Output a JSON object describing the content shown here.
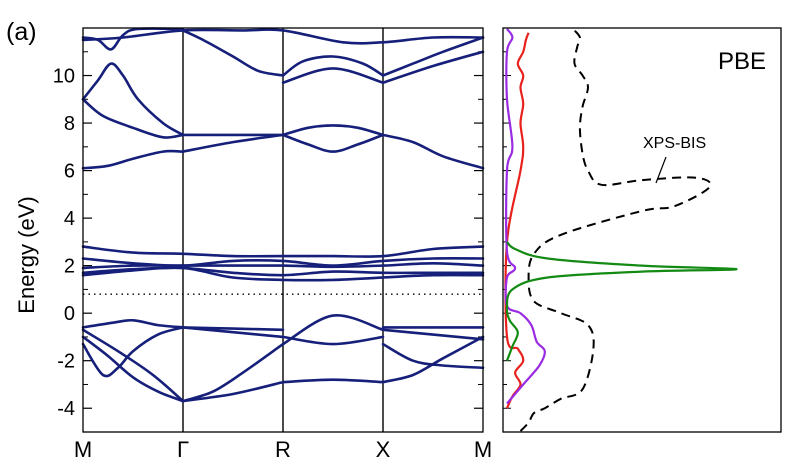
{
  "panel_label": "(a)",
  "colors": {
    "bands": "#16207a",
    "dos_red": "#e8211d",
    "dos_purple": "#9a2be2",
    "dos_green": "#138a13",
    "xps": "#000000"
  },
  "chart_data": [
    {
      "type": "line",
      "ylabel": "Energy (eV)",
      "ylim": [
        -5,
        12
      ],
      "yticks": [
        "-4",
        "-2",
        "0",
        "2",
        "4",
        "6",
        "8",
        "10"
      ],
      "k_labels": [
        "M",
        "Γ",
        "R",
        "X",
        "M"
      ],
      "fermi_level": 0.8,
      "bands": [
        {
          "x": [
            0,
            0.4,
            1,
            1.6,
            2,
            2.6,
            3,
            3.5,
            4
          ],
          "y": [
            11.5,
            11.6,
            11.9,
            11.9,
            11.9,
            11.4,
            11.4,
            11.6,
            11.6
          ]
        },
        {
          "x": [
            0,
            0.15,
            0.28,
            0.4,
            0.55,
            1
          ],
          "y": [
            11.6,
            11.5,
            11.1,
            11.7,
            12.0,
            12.0
          ]
        },
        {
          "x": [
            0,
            0.15,
            0.28,
            0.4,
            0.55,
            0.8,
            1
          ],
          "y": [
            9.0,
            9.8,
            10.5,
            10.0,
            9.0,
            8.0,
            7.5
          ]
        },
        {
          "x": [
            0,
            0.2,
            0.5,
            0.8,
            1
          ],
          "y": [
            9.0,
            8.3,
            7.8,
            7.4,
            7.5
          ]
        },
        {
          "x": [
            1,
            1.5,
            2
          ],
          "y": [
            7.5,
            7.5,
            7.5
          ]
        },
        {
          "x": [
            0,
            0.25,
            0.5,
            0.8,
            1
          ],
          "y": [
            6.1,
            6.2,
            6.5,
            6.8,
            6.8
          ]
        },
        {
          "x": [
            1,
            1.5,
            2
          ],
          "y": [
            6.8,
            7.2,
            7.5
          ]
        },
        {
          "x": [
            2,
            2.25,
            2.5,
            2.75,
            3
          ],
          "y": [
            7.5,
            7.8,
            7.9,
            7.8,
            7.5
          ]
        },
        {
          "x": [
            2,
            2.25,
            2.5,
            2.75,
            3
          ],
          "y": [
            7.5,
            7.1,
            6.8,
            7.1,
            7.5
          ]
        },
        {
          "x": [
            3,
            3.3,
            3.6,
            4
          ],
          "y": [
            7.5,
            7.2,
            6.6,
            6.1
          ]
        },
        {
          "x": [
            1,
            1.2,
            1.5,
            1.75,
            2
          ],
          "y": [
            11.9,
            11.5,
            10.8,
            10.2,
            10.0
          ]
        },
        {
          "x": [
            2,
            2.2,
            2.5,
            2.8,
            3
          ],
          "y": [
            10.0,
            10.6,
            10.8,
            10.5,
            10.0
          ]
        },
        {
          "x": [
            2,
            2.5,
            3
          ],
          "y": [
            9.7,
            10.3,
            9.7
          ]
        },
        {
          "x": [
            3,
            3.5,
            4
          ],
          "y": [
            9.7,
            10.4,
            11.0
          ]
        },
        {
          "x": [
            3,
            3.3,
            3.6,
            4
          ],
          "y": [
            10.0,
            10.5,
            11.0,
            11.6
          ]
        },
        {
          "x": [
            0,
            0.5,
            1,
            1.5,
            2,
            2.5,
            3,
            3.5,
            4
          ],
          "y": [
            2.8,
            2.55,
            2.5,
            2.4,
            2.4,
            2.4,
            2.4,
            2.7,
            2.8
          ]
        },
        {
          "x": [
            0,
            0.5,
            1,
            1.5,
            2,
            2.5,
            3,
            3.5,
            4
          ],
          "y": [
            2.3,
            2.1,
            2.0,
            2.2,
            2.2,
            2.0,
            2.2,
            2.3,
            2.3
          ]
        },
        {
          "x": [
            0,
            0.5,
            1,
            1.5,
            2,
            2.5,
            3,
            3.5,
            4
          ],
          "y": [
            1.9,
            2.0,
            2.0,
            2.0,
            2.0,
            1.95,
            2.0,
            2.1,
            2.0
          ]
        },
        {
          "x": [
            0,
            0.5,
            1,
            1.5,
            2,
            2.5,
            3,
            3.5,
            4
          ],
          "y": [
            1.7,
            1.85,
            1.9,
            1.7,
            1.6,
            1.75,
            1.7,
            1.7,
            1.7
          ]
        },
        {
          "x": [
            0,
            0.5,
            1,
            1.5,
            2,
            2.5,
            3,
            3.5,
            4
          ],
          "y": [
            1.6,
            1.8,
            1.9,
            1.5,
            1.4,
            1.4,
            1.5,
            1.6,
            1.6
          ]
        },
        {
          "x": [
            0,
            0.3,
            0.5,
            0.75,
            1
          ],
          "y": [
            -0.6,
            -0.4,
            -0.3,
            -0.5,
            -0.6
          ]
        },
        {
          "x": [
            0,
            0.35,
            0.7,
            1
          ],
          "y": [
            -0.7,
            -1.6,
            -2.6,
            -3.7
          ]
        },
        {
          "x": [
            0,
            0.25,
            0.5,
            0.75,
            1
          ],
          "y": [
            -1.0,
            -1.8,
            -2.7,
            -3.3,
            -3.7
          ]
        },
        {
          "x": [
            0,
            0.2,
            0.35,
            0.5,
            0.75,
            1
          ],
          "y": [
            -1.3,
            -2.6,
            -2.3,
            -1.6,
            -0.9,
            -0.6
          ]
        },
        {
          "x": [
            1,
            1.5,
            2
          ],
          "y": [
            -0.6,
            -0.65,
            -0.7
          ]
        },
        {
          "x": [
            1,
            1.5,
            2
          ],
          "y": [
            -0.6,
            -0.8,
            -1.0
          ]
        },
        {
          "x": [
            1,
            1.3,
            1.6,
            2
          ],
          "y": [
            -3.7,
            -3.3,
            -2.5,
            -1.3
          ]
        },
        {
          "x": [
            1,
            1.5,
            2
          ],
          "y": [
            -3.7,
            -3.4,
            -2.9
          ]
        },
        {
          "x": [
            2,
            2.5,
            3
          ],
          "y": [
            -1.3,
            -0.1,
            -0.7
          ]
        },
        {
          "x": [
            2,
            2.5,
            3
          ],
          "y": [
            -1.0,
            -1.3,
            -1.0
          ]
        },
        {
          "x": [
            2,
            2.5,
            3
          ],
          "y": [
            -2.9,
            -2.8,
            -2.9
          ]
        },
        {
          "x": [
            3,
            3.5,
            4
          ],
          "y": [
            -0.6,
            -0.6,
            -0.6
          ]
        },
        {
          "x": [
            3,
            3.5,
            4
          ],
          "y": [
            -0.7,
            -0.9,
            -1.1
          ]
        },
        {
          "x": [
            3,
            3.3,
            3.6,
            4
          ],
          "y": [
            -1.3,
            -2.0,
            -2.2,
            -2.3
          ]
        },
        {
          "x": [
            3,
            3.3,
            3.6,
            4
          ],
          "y": [
            -2.9,
            -2.6,
            -1.9,
            -1.0
          ]
        }
      ]
    },
    {
      "type": "line",
      "title": "PBE",
      "ylim": [
        -5,
        12
      ],
      "annotation": "XPS-BIS",
      "series": [
        {
          "style": "dashed",
          "color": "#000000",
          "x": [
            0.05,
            0.08,
            0.1,
            0.14,
            0.2,
            0.28,
            0.32,
            0.3,
            0.2,
            0.1,
            0.08,
            0.1,
            0.2,
            0.5,
            0.62,
            0.75,
            0.7,
            0.5,
            0.35,
            0.3,
            0.28,
            0.27,
            0.28,
            0.3,
            0.28,
            0.25,
            0.26,
            0.27,
            0.25
          ],
          "y": [
            -5,
            -4.6,
            -4.2,
            -4.0,
            -3.6,
            -3.2,
            -1.5,
            -0.5,
            0.0,
            0.5,
            1.5,
            2.5,
            3.3,
            4.3,
            4.5,
            5.3,
            5.7,
            5.6,
            5.4,
            6.0,
            6.7,
            7.8,
            8.7,
            9.5,
            10.0,
            10.5,
            11.2,
            11.6,
            11.9
          ]
        },
        {
          "style": "solid",
          "color": "#e8211d",
          "x": [
            0.0,
            0.02,
            0.05,
            0.03,
            0.06,
            0.04,
            0.0,
            0.0,
            0.05,
            0.06,
            0.05,
            0.06,
            0.05,
            0.06,
            0.04,
            0.06,
            0.07,
            0.08
          ],
          "y": [
            -4.0,
            -3.5,
            -3.0,
            -2.5,
            -2.0,
            -1.5,
            -1.0,
            3.0,
            6.0,
            7.0,
            8.0,
            8.8,
            9.5,
            10.0,
            10.5,
            11.0,
            11.5,
            11.8
          ]
        },
        {
          "style": "solid",
          "color": "#9a2be2",
          "x": [
            0.0,
            0.06,
            0.12,
            0.14,
            0.11,
            0.09,
            0.05,
            0.0,
            0.0,
            0.03,
            0.0,
            0.0,
            0.02,
            0.0,
            0.0,
            0.02,
            0.0
          ],
          "y": [
            -3.8,
            -3.0,
            -2.2,
            -1.6,
            -1.2,
            -0.5,
            0.0,
            0.3,
            1.5,
            1.9,
            2.6,
            6.0,
            7.0,
            9.0,
            11.0,
            11.6,
            12.0
          ]
        },
        {
          "style": "solid",
          "color": "#138a13",
          "x": [
            0.0,
            0.02,
            0.04,
            0.01,
            0.0,
            0.02,
            0.15,
            0.5,
            0.85,
            0.5,
            0.15,
            0.03,
            0.0
          ],
          "y": [
            -2.0,
            -1.4,
            -0.8,
            -0.3,
            0.2,
            1.0,
            1.5,
            1.75,
            1.85,
            2.0,
            2.3,
            2.7,
            3.0
          ]
        }
      ]
    }
  ]
}
